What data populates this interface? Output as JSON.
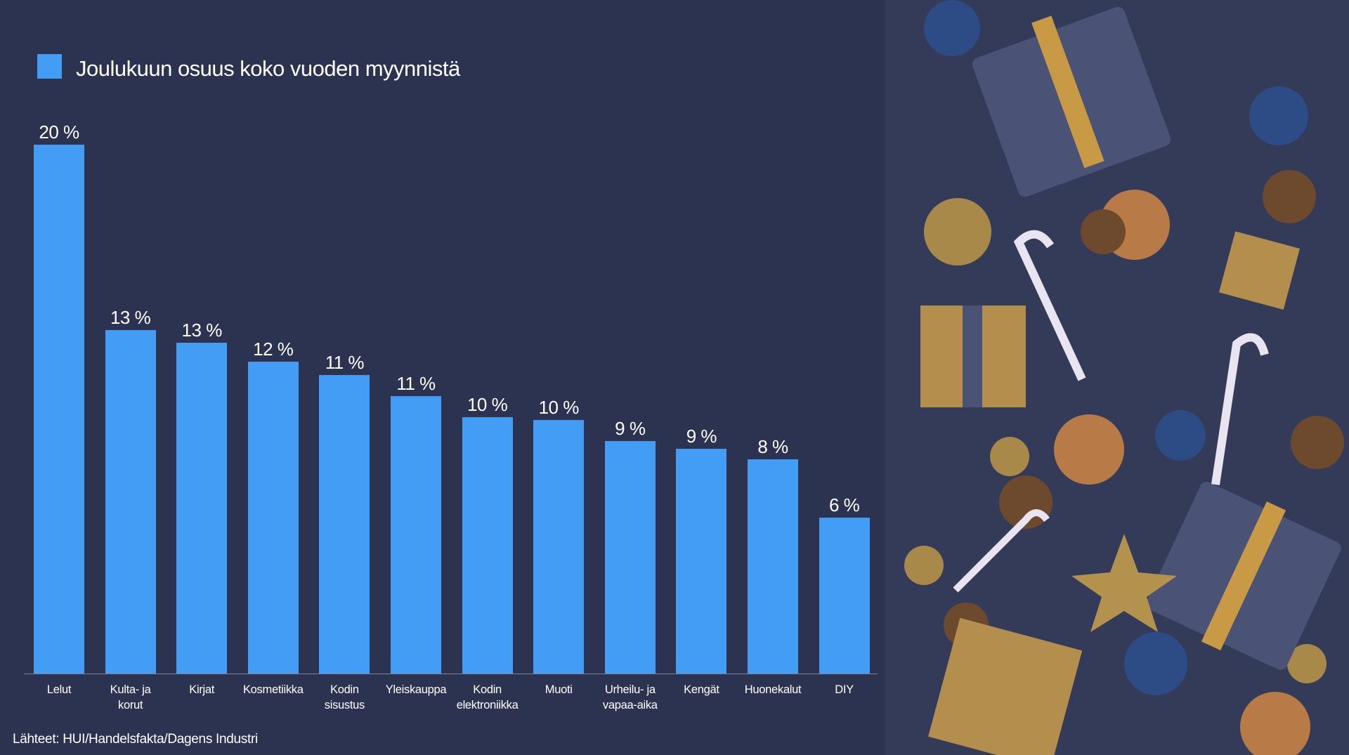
{
  "chart_data": {
    "type": "bar",
    "categories": [
      "Lelut",
      "Kulta- ja\nkorut",
      "Kirjat",
      "Kosmetiikka",
      "Kodin\nsisustus",
      "Yleiskauppa",
      "Kodin\nelektroniikka",
      "Muoti",
      "Urheilu- ja\nvapaa-aika",
      "Kengät",
      "Huonekalut",
      "DIY"
    ],
    "series": [
      {
        "name": "Joulukuun osuus koko vuoden myynnistä",
        "color": "#449df5",
        "values": [
          20,
          13.0,
          12.5,
          11.8,
          11.3,
          10.5,
          9.7,
          9.6,
          8.8,
          8.5,
          8.1,
          5.9
        ],
        "value_labels": [
          "20 %",
          "13 %",
          "13 %",
          "12 %",
          "11 %",
          "11 %",
          "10 %",
          "10 %",
          "9 %",
          "9 %",
          "8 %",
          "6 %"
        ]
      }
    ],
    "source": "Lähteet: HUI/Handelsfakta/Dagens Industri"
  }
}
